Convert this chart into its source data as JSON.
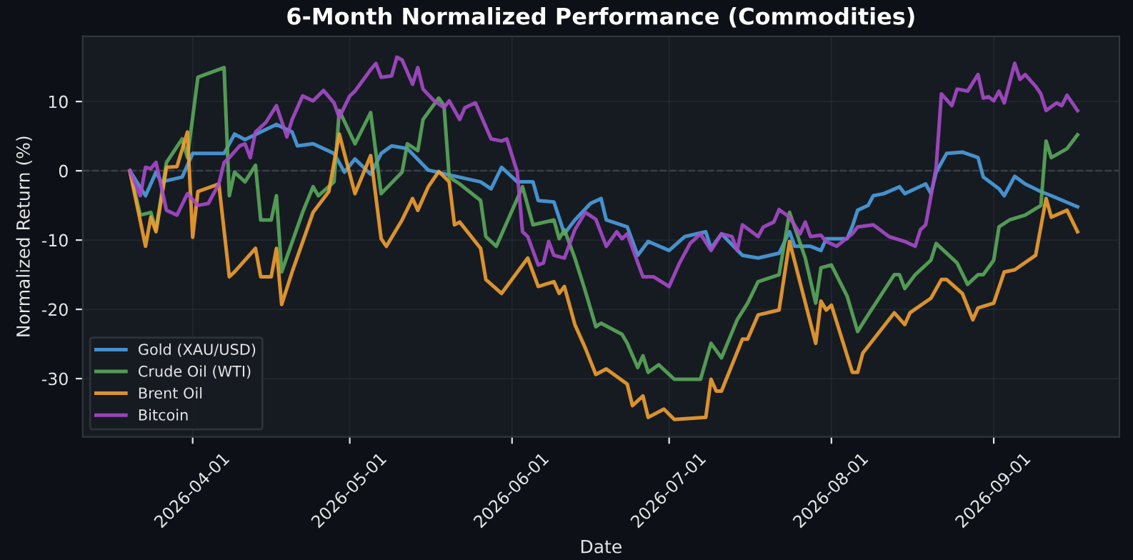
{
  "chart_data": {
    "type": "line",
    "title": "6-Month Normalized Performance (Commodities)",
    "xlabel": "Date",
    "ylabel": "Normalized Return (%)",
    "xlim": [
      "2026-03-11",
      "2026-09-25"
    ],
    "ylim": [
      -38.4,
      19.4
    ],
    "yticks": [
      -30,
      -20,
      -10,
      0,
      10
    ],
    "xticks": [
      "2026-04-01",
      "2026-05-01",
      "2026-06-01",
      "2026-07-01",
      "2026-08-01",
      "2026-09-01"
    ],
    "grid": true,
    "legend": "bottom left",
    "line_style": "solid",
    "marker": "none",
    "ref_lines": [
      {
        "axis": "y",
        "value": 0,
        "color": "#3a3f47",
        "line_style": "dashed"
      }
    ],
    "series": [
      {
        "name": "Gold (XAU/USD)",
        "color": "#4a9ee0",
        "x": [
          "2026-03-20",
          "2026-03-23",
          "2026-03-25",
          "2026-03-26",
          "2026-03-30",
          "2026-04-01",
          "2026-04-02",
          "2026-04-07",
          "2026-04-09",
          "2026-04-11",
          "2026-04-14",
          "2026-04-17",
          "2026-04-20",
          "2026-04-21",
          "2026-04-24",
          "2026-04-28",
          "2026-04-30",
          "2026-05-02",
          "2026-05-05",
          "2026-05-07",
          "2026-05-09",
          "2026-05-12",
          "2026-05-16",
          "2026-05-20",
          "2026-05-26",
          "2026-05-28",
          "2026-05-30",
          "2026-06-02",
          "2026-06-05",
          "2026-06-06",
          "2026-06-09",
          "2026-06-11",
          "2026-06-13",
          "2026-06-16",
          "2026-06-18",
          "2026-06-19",
          "2026-06-23",
          "2026-06-25",
          "2026-06-27",
          "2026-07-01",
          "2026-07-04",
          "2026-07-08",
          "2026-07-09",
          "2026-07-11",
          "2026-07-15",
          "2026-07-18",
          "2026-07-22",
          "2026-07-24",
          "2026-07-25",
          "2026-07-28",
          "2026-07-30",
          "2026-07-31",
          "2026-08-04",
          "2026-08-05",
          "2026-08-06",
          "2026-08-08",
          "2026-08-09",
          "2026-08-11",
          "2026-08-14",
          "2026-08-15",
          "2026-08-19",
          "2026-08-20",
          "2026-08-21",
          "2026-08-23",
          "2026-08-26",
          "2026-08-29",
          "2026-08-30",
          "2026-09-02",
          "2026-09-03",
          "2026-09-05",
          "2026-09-07",
          "2026-09-10",
          "2026-09-12",
          "2026-09-17"
        ],
        "values": [
          0,
          -3.6,
          -0.2,
          -1.6,
          -0.9,
          2.5,
          2.5,
          2.5,
          5.3,
          4.5,
          5.6,
          6.7,
          5.6,
          3.6,
          3.9,
          2.5,
          -0.2,
          1.7,
          -0.5,
          2.5,
          3.6,
          3.2,
          0.1,
          -0.6,
          -1.6,
          -2.6,
          0.5,
          -1.6,
          -1.6,
          -4.3,
          -4.5,
          -9.1,
          -7.1,
          -4.7,
          -4,
          -7.1,
          -8.1,
          -12.2,
          -10.2,
          -11.5,
          -9.5,
          -8.8,
          -11.2,
          -9.1,
          -12.2,
          -12.6,
          -11.9,
          -8.8,
          -10.9,
          -10.9,
          -11.5,
          -9.8,
          -9.8,
          -8,
          -5.7,
          -5,
          -3.6,
          -3.3,
          -2.3,
          -3.3,
          -1.9,
          -3.3,
          -0.2,
          2.5,
          2.7,
          1.9,
          -0.9,
          -2.6,
          -3.6,
          -0.8,
          -1.9,
          -3,
          -3.6,
          -5.2
        ]
      },
      {
        "name": "Crude Oil (WTI)",
        "color": "#5aa85a",
        "x": [
          "2026-03-20",
          "2026-03-22",
          "2026-03-24",
          "2026-03-25",
          "2026-03-27",
          "2026-03-30",
          "2026-03-31",
          "2026-04-02",
          "2026-04-07",
          "2026-04-08",
          "2026-04-09",
          "2026-04-11",
          "2026-04-13",
          "2026-04-14",
          "2026-04-16",
          "2026-04-17",
          "2026-04-18",
          "2026-04-22",
          "2026-04-24",
          "2026-04-25",
          "2026-04-28",
          "2026-04-29",
          "2026-05-02",
          "2026-05-05",
          "2026-05-07",
          "2026-05-11",
          "2026-05-12",
          "2026-05-14",
          "2026-05-15",
          "2026-05-18",
          "2026-05-19",
          "2026-05-20",
          "2026-05-22",
          "2026-05-26",
          "2026-05-27",
          "2026-05-29",
          "2026-06-03",
          "2026-06-05",
          "2026-06-09",
          "2026-06-10",
          "2026-06-11",
          "2026-06-13",
          "2026-06-15",
          "2026-06-17",
          "2026-06-18",
          "2026-06-22",
          "2026-06-23",
          "2026-06-25",
          "2026-06-26",
          "2026-06-27",
          "2026-06-29",
          "2026-07-02",
          "2026-07-07",
          "2026-07-09",
          "2026-07-11",
          "2026-07-14",
          "2026-07-16",
          "2026-07-18",
          "2026-07-22",
          "2026-07-24",
          "2026-07-27",
          "2026-07-29",
          "2026-07-30",
          "2026-08-01",
          "2026-08-04",
          "2026-08-06",
          "2026-08-08",
          "2026-08-13",
          "2026-08-14",
          "2026-08-15",
          "2026-08-17",
          "2026-08-20",
          "2026-08-21",
          "2026-08-25",
          "2026-08-27",
          "2026-08-29",
          "2026-08-30",
          "2026-09-01",
          "2026-09-02",
          "2026-09-04",
          "2026-09-07",
          "2026-09-10",
          "2026-09-11",
          "2026-09-12",
          "2026-09-15",
          "2026-09-17"
        ],
        "values": [
          0,
          -6.4,
          -6,
          -8.5,
          1.2,
          4.6,
          1.9,
          13.5,
          14.9,
          -3.6,
          -0.2,
          -1.6,
          0.8,
          -7.1,
          -7.1,
          -3.6,
          -14.6,
          -6,
          -2.3,
          -3.6,
          -1.6,
          8.7,
          3.9,
          8.4,
          -3.3,
          -0.2,
          3.9,
          2.9,
          7.4,
          10.5,
          9.4,
          -0.9,
          -1.9,
          -4.3,
          -9.5,
          -10.9,
          -2.3,
          -7.8,
          -7.1,
          -9.8,
          -8.5,
          -12.6,
          -17.4,
          -22.5,
          -22,
          -23.6,
          -24.9,
          -28.4,
          -26.7,
          -29.1,
          -28,
          -30.1,
          -30.1,
          -24.9,
          -27,
          -21.5,
          -19.1,
          -16,
          -15,
          -6,
          -12.6,
          -19.1,
          -14,
          -13.6,
          -18.1,
          -23.2,
          -20.8,
          -15,
          -15,
          -17,
          -15,
          -12.9,
          -10.5,
          -13.3,
          -16.4,
          -15,
          -15,
          -12.9,
          -8.1,
          -7.1,
          -6.4,
          -5,
          4.3,
          1.9,
          3.2,
          5.2
        ]
      },
      {
        "name": "Brent Oil",
        "color": "#f0a030",
        "x": [
          "2026-03-20",
          "2026-03-23",
          "2026-03-24",
          "2026-03-25",
          "2026-03-27",
          "2026-03-29",
          "2026-03-31",
          "2026-04-01",
          "2026-04-02",
          "2026-04-06",
          "2026-04-08",
          "2026-04-09",
          "2026-04-13",
          "2026-04-14",
          "2026-04-16",
          "2026-04-17",
          "2026-04-18",
          "2026-04-20",
          "2026-04-24",
          "2026-04-27",
          "2026-04-29",
          "2026-05-02",
          "2026-05-05",
          "2026-05-07",
          "2026-05-08",
          "2026-05-11",
          "2026-05-13",
          "2026-05-14",
          "2026-05-16",
          "2026-05-18",
          "2026-05-20",
          "2026-05-21",
          "2026-05-22",
          "2026-05-26",
          "2026-05-27",
          "2026-05-30",
          "2026-06-04",
          "2026-06-06",
          "2026-06-09",
          "2026-06-10",
          "2026-06-11",
          "2026-06-13",
          "2026-06-15",
          "2026-06-17",
          "2026-06-19",
          "2026-06-23",
          "2026-06-24",
          "2026-06-26",
          "2026-06-27",
          "2026-06-30",
          "2026-07-02",
          "2026-07-08",
          "2026-07-09",
          "2026-07-10",
          "2026-07-11",
          "2026-07-15",
          "2026-07-16",
          "2026-07-18",
          "2026-07-22",
          "2026-07-24",
          "2026-07-29",
          "2026-07-30",
          "2026-07-31",
          "2026-08-01",
          "2026-08-05",
          "2026-08-06",
          "2026-08-07",
          "2026-08-13",
          "2026-08-15",
          "2026-08-16",
          "2026-08-20",
          "2026-08-22",
          "2026-08-23",
          "2026-08-26",
          "2026-08-28",
          "2026-08-29",
          "2026-09-01",
          "2026-09-03",
          "2026-09-05",
          "2026-09-09",
          "2026-09-11",
          "2026-09-12",
          "2026-09-15",
          "2026-09-17"
        ],
        "values": [
          0,
          -10.9,
          -6.7,
          -8.8,
          0.5,
          0.6,
          5.6,
          -9.6,
          -3,
          -1.9,
          -15.3,
          -14.6,
          -11.2,
          -15.3,
          -15.3,
          -11.2,
          -19.3,
          -14.6,
          -6,
          -3,
          5.3,
          -3.3,
          2.2,
          -9.8,
          -10.9,
          -7.1,
          -4,
          -5.7,
          -2.3,
          -0.1,
          -1.6,
          -7.8,
          -7.4,
          -11.2,
          -15.7,
          -17.7,
          -12.6,
          -16.7,
          -16,
          -17.7,
          -16.7,
          -22.2,
          -25.6,
          -29.4,
          -28.6,
          -30.8,
          -33.9,
          -32.5,
          -35.6,
          -34.4,
          -35.9,
          -35.6,
          -30.1,
          -31.8,
          -31.8,
          -24.3,
          -24.3,
          -20.8,
          -20.1,
          -10.2,
          -24.9,
          -18.8,
          -20.1,
          -19.4,
          -29.1,
          -29.1,
          -26.3,
          -20.5,
          -22.2,
          -20.5,
          -18.4,
          -15.7,
          -15.7,
          -17.7,
          -21.5,
          -19.8,
          -19.1,
          -14.6,
          -14.3,
          -12.2,
          -4,
          -6.7,
          -5.7,
          -8.8
        ]
      },
      {
        "name": "Bitcoin",
        "color": "#a64ac9",
        "x": [
          "2026-03-20",
          "2026-03-22",
          "2026-03-23",
          "2026-03-24",
          "2026-03-25",
          "2026-03-27",
          "2026-03-29",
          "2026-03-31",
          "2026-04-02",
          "2026-04-04",
          "2026-04-06",
          "2026-04-07",
          "2026-04-08",
          "2026-04-10",
          "2026-04-11",
          "2026-04-12",
          "2026-04-13",
          "2026-04-15",
          "2026-04-17",
          "2026-04-19",
          "2026-04-20",
          "2026-04-22",
          "2026-04-24",
          "2026-04-26",
          "2026-04-28",
          "2026-04-29",
          "2026-05-01",
          "2026-05-02",
          "2026-05-05",
          "2026-05-06",
          "2026-05-07",
          "2026-05-09",
          "2026-05-10",
          "2026-05-11",
          "2026-05-13",
          "2026-05-14",
          "2026-05-15",
          "2026-05-17",
          "2026-05-19",
          "2026-05-20",
          "2026-05-22",
          "2026-05-23",
          "2026-05-25",
          "2026-05-28",
          "2026-05-30",
          "2026-05-31",
          "2026-06-02",
          "2026-06-03",
          "2026-06-04",
          "2026-06-06",
          "2026-06-07",
          "2026-06-08",
          "2026-06-09",
          "2026-06-11",
          "2026-06-13",
          "2026-06-15",
          "2026-06-17",
          "2026-06-19",
          "2026-06-21",
          "2026-06-22",
          "2026-06-23",
          "2026-06-26",
          "2026-06-28",
          "2026-07-01",
          "2026-07-03",
          "2026-07-05",
          "2026-07-07",
          "2026-07-09",
          "2026-07-11",
          "2026-07-13",
          "2026-07-14",
          "2026-07-15",
          "2026-07-18",
          "2026-07-19",
          "2026-07-21",
          "2026-07-22",
          "2026-07-24",
          "2026-07-26",
          "2026-07-27",
          "2026-07-28",
          "2026-07-30",
          "2026-07-31",
          "2026-08-02",
          "2026-08-05",
          "2026-08-06",
          "2026-08-09",
          "2026-08-12",
          "2026-08-15",
          "2026-08-17",
          "2026-08-18",
          "2026-08-19",
          "2026-08-21",
          "2026-08-22",
          "2026-08-24",
          "2026-08-25",
          "2026-08-27",
          "2026-08-29",
          "2026-08-30",
          "2026-08-31",
          "2026-09-01",
          "2026-09-02",
          "2026-09-03",
          "2026-09-05",
          "2026-09-06",
          "2026-09-07",
          "2026-09-09",
          "2026-09-10",
          "2026-09-11",
          "2026-09-13",
          "2026-09-14",
          "2026-09-15",
          "2026-09-17"
        ],
        "values": [
          0,
          -3.6,
          0.5,
          0.3,
          1.2,
          -5.7,
          -6.4,
          -3.3,
          -5,
          -4.7,
          -1.9,
          1.2,
          1.9,
          3.6,
          3.9,
          1.9,
          5.6,
          7,
          9.4,
          4.9,
          7.4,
          10.8,
          10.1,
          11.6,
          9.8,
          7.7,
          10.8,
          11.5,
          14.6,
          15.5,
          13.5,
          13.7,
          16.4,
          16,
          12.5,
          14.9,
          11.8,
          10.2,
          9.1,
          10.1,
          7.4,
          9.1,
          9.8,
          4.6,
          4.3,
          4.6,
          -0.2,
          -8.8,
          -9.5,
          -13.6,
          -13.3,
          -10.2,
          -12.2,
          -12.6,
          -8.5,
          -6,
          -7,
          -10.9,
          -8.8,
          -9.8,
          -9.1,
          -15.3,
          -15.3,
          -16.7,
          -13.3,
          -10.5,
          -9.1,
          -11.5,
          -9.1,
          -9.5,
          -11.5,
          -7.8,
          -9.5,
          -8.1,
          -7.4,
          -5.6,
          -6.7,
          -9.1,
          -7.4,
          -9.5,
          -9.3,
          -10.2,
          -10.9,
          -9.1,
          -8.1,
          -7.8,
          -9.5,
          -10.2,
          -10.9,
          -8.5,
          -7.8,
          0.5,
          11.1,
          9.4,
          11.8,
          11.5,
          13.9,
          10.5,
          10.7,
          10.1,
          11.5,
          9.8,
          15.5,
          13.2,
          13.9,
          12.2,
          11.1,
          8.7,
          9.8,
          9.4,
          10.9,
          8.7
        ]
      }
    ]
  }
}
